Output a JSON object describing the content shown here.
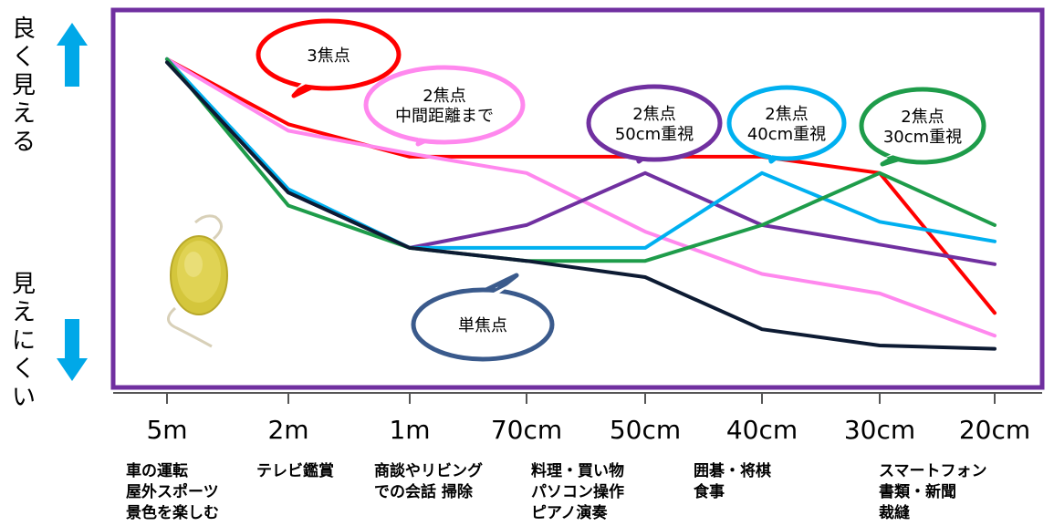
{
  "chart_data": {
    "type": "line",
    "categories": [
      "5m",
      "2m",
      "1m",
      "70cm",
      "50cm",
      "40cm",
      "30cm",
      "20cm"
    ],
    "ylim": [
      0,
      100
    ],
    "y_label_top": "良く見える",
    "y_label_bottom": "見えにくい",
    "activities": [
      [
        "車の運転",
        "屋外スポーツ",
        "景色を楽しむ"
      ],
      [
        "テレビ鑑賞"
      ],
      [
        "商談やリビング",
        "での会話 掃除"
      ],
      [
        "料理・買い物",
        "パソコン操作",
        "ピアノ演奏"
      ],
      [],
      [
        "囲碁・将棋",
        "食事"
      ],
      [],
      [
        "スマートフォン",
        "書類・新聞",
        "裁縫"
      ]
    ],
    "series": [
      {
        "name": "3焦点",
        "color": "#ff0000",
        "values": [
          95,
          75,
          65,
          65,
          65,
          65,
          60,
          17
        ]
      },
      {
        "name": "2焦点 中間距離まで",
        "color": "#ff88ee",
        "values": [
          95,
          73,
          66,
          60,
          42,
          29,
          23,
          10
        ]
      },
      {
        "name": "2焦点 50cm重視",
        "color": "#7030a0",
        "values": [
          95,
          54,
          37,
          44,
          60,
          44,
          38,
          32
        ]
      },
      {
        "name": "2焦点 40cm重視",
        "color": "#00b0f0",
        "values": [
          95,
          55,
          37,
          37,
          37,
          60,
          45,
          39
        ]
      },
      {
        "name": "2焦点 30cm重視",
        "color": "#1e9c4a",
        "values": [
          95,
          50,
          37,
          33,
          33,
          44,
          60,
          44
        ]
      },
      {
        "name": "単焦点",
        "color": "#0d1b33",
        "values": [
          94,
          54,
          37,
          33,
          28,
          12,
          7,
          6
        ]
      }
    ],
    "callouts": [
      {
        "lines": [
          "3焦点"
        ],
        "color": "#ff0000"
      },
      {
        "lines": [
          "2焦点",
          "中間距離まで"
        ],
        "color": "#ff88ee"
      },
      {
        "lines": [
          "2焦点",
          "50cm重視"
        ],
        "color": "#7030a0"
      },
      {
        "lines": [
          "2焦点",
          "40cm重視"
        ],
        "color": "#00b0f0"
      },
      {
        "lines": [
          "2焦点",
          "30cm重視"
        ],
        "color": "#1e9c4a"
      },
      {
        "lines": [
          "単焦点"
        ],
        "color": "#3a5a8c"
      }
    ],
    "frame_color": "#7030a0",
    "arrow_color": "#00a8e8"
  }
}
